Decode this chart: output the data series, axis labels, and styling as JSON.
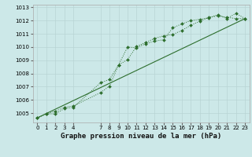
{
  "title": "Graphe pression niveau de la mer (hPa)",
  "background_color": "#cce8e8",
  "grid_color": "#b8d4d4",
  "line_color": "#2d6e2d",
  "xlim": [
    -0.5,
    23.5
  ],
  "ylim": [
    1004.3,
    1013.2
  ],
  "xticks": [
    0,
    1,
    2,
    3,
    4,
    7,
    8,
    9,
    10,
    11,
    12,
    13,
    14,
    15,
    16,
    17,
    18,
    19,
    20,
    21,
    22,
    23
  ],
  "yticks": [
    1005,
    1006,
    1007,
    1008,
    1009,
    1010,
    1011,
    1012,
    1013
  ],
  "series1_x": [
    0,
    1,
    2,
    3,
    4,
    7,
    8,
    9,
    10,
    11,
    12,
    13,
    14,
    15,
    16,
    17,
    18,
    19,
    20,
    21,
    22,
    23
  ],
  "series1_y": [
    1004.65,
    1004.95,
    1004.95,
    1005.35,
    1005.45,
    1007.3,
    1007.55,
    1008.65,
    1010.0,
    1009.95,
    1010.25,
    1010.45,
    1010.55,
    1011.45,
    1011.75,
    1012.0,
    1012.1,
    1012.2,
    1012.45,
    1012.15,
    1012.55,
    1012.15
  ],
  "series2_x": [
    0,
    1,
    2,
    3,
    4,
    7,
    8,
    9,
    10,
    11,
    12,
    13,
    14,
    15,
    16,
    17,
    18,
    19,
    20,
    21,
    22,
    23
  ],
  "series2_y": [
    1004.65,
    1004.95,
    1005.15,
    1005.45,
    1005.55,
    1006.55,
    1007.05,
    1008.65,
    1009.05,
    1010.05,
    1010.35,
    1010.65,
    1010.85,
    1010.95,
    1011.25,
    1011.65,
    1011.95,
    1012.25,
    1012.35,
    1012.25,
    1012.15,
    1012.15
  ],
  "series3_x": [
    0,
    23
  ],
  "series3_y": [
    1004.65,
    1012.15
  ],
  "tick_fontsize": 5.0,
  "label_fontsize": 6.5
}
